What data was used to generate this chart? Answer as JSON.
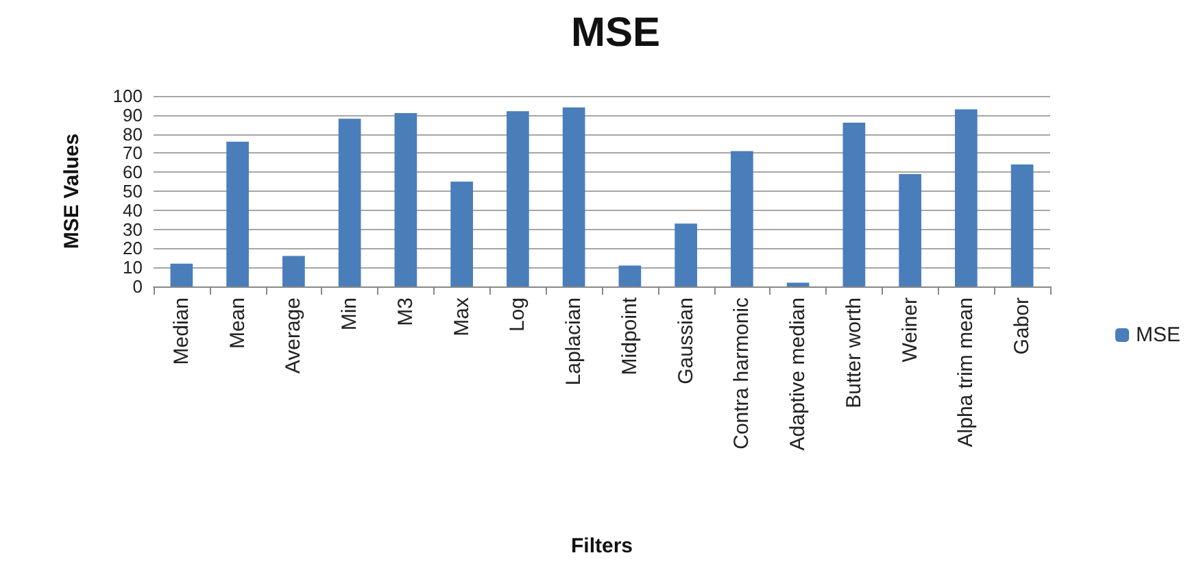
{
  "chart_data": {
    "type": "bar",
    "title": "MSE",
    "xlabel": "Filters",
    "ylabel": "MSE Values",
    "categories": [
      "Median",
      "Mean",
      "Average",
      "Min",
      "M3",
      "Max",
      "Log",
      "Laplacian",
      "Midpoint",
      "Gaussian",
      "Contra harmonic",
      "Adaptive median",
      "Butter worth",
      "Weiner",
      "Alpha trim mean",
      "Gabor"
    ],
    "series": [
      {
        "name": "MSE",
        "color": "#4a7ebb",
        "values": [
          12,
          76,
          16,
          88,
          91,
          55,
          92,
          94,
          11,
          33,
          71,
          2,
          86,
          59,
          93,
          64
        ]
      }
    ],
    "ylim": [
      0,
      100
    ],
    "yticks": [
      0,
      10,
      20,
      30,
      40,
      50,
      60,
      70,
      80,
      90,
      100
    ],
    "grid": "y",
    "legend": "right"
  }
}
